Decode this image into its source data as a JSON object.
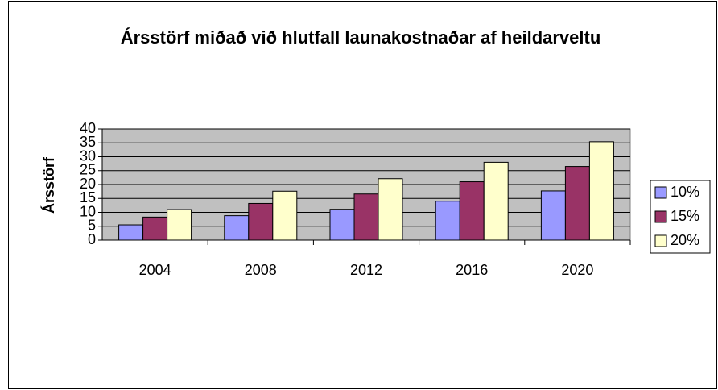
{
  "chart_data": {
    "type": "bar",
    "title": "Ársstörf miðað við hlutfall launakostnaðar af heildarveltu",
    "y_label": "Ársstörf",
    "categories": [
      "2004",
      "2008",
      "2012",
      "2016",
      "2020"
    ],
    "series": [
      {
        "name": "10%",
        "color": "#9999ff",
        "values": [
          5.5,
          8.8,
          11.1,
          14,
          17.7
        ]
      },
      {
        "name": "15%",
        "color": "#993366",
        "values": [
          8.3,
          13.2,
          16.6,
          21,
          26.5
        ]
      },
      {
        "name": "20%",
        "color": "#ffffcc",
        "values": [
          11,
          17.6,
          22.1,
          28,
          35.4
        ]
      }
    ],
    "ylim": [
      0,
      40
    ],
    "yticks": [
      0,
      5,
      10,
      15,
      20,
      25,
      30,
      35,
      40
    ],
    "grid": true,
    "legend": "right",
    "plot_background": "#c0c0c0"
  }
}
